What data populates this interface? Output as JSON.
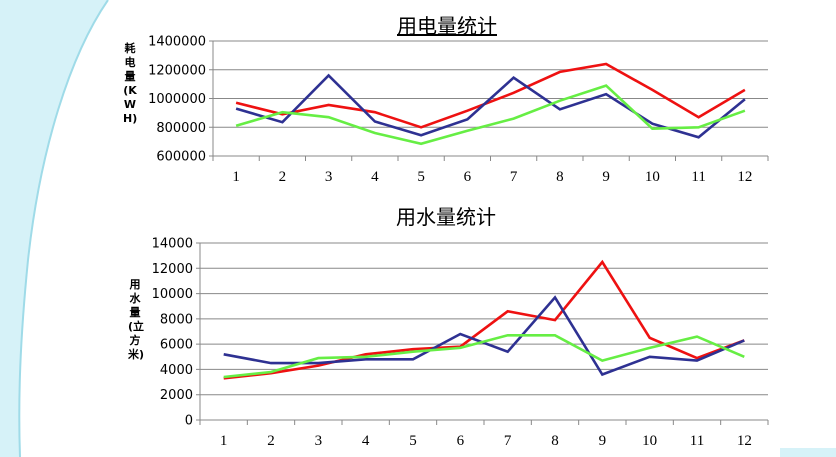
{
  "colors": {
    "series_red": "#ee1111",
    "series_blue": "#2e3192",
    "series_green": "#66ee44",
    "grid": "#888888",
    "background_accent": "#cdeff6"
  },
  "chart_data": [
    {
      "type": "line",
      "title": "用电量统计",
      "xlabel": "",
      "ylabel": "耗电量(KWH)",
      "categories": [
        "1",
        "2",
        "3",
        "4",
        "5",
        "6",
        "7",
        "8",
        "9",
        "10",
        "11",
        "12"
      ],
      "ylim": [
        600000,
        1400000
      ],
      "yticks": [
        600000,
        800000,
        1000000,
        1200000,
        1400000
      ],
      "ytick_labels": [
        "600000",
        "800000",
        "1000000",
        "1200000",
        "1400000"
      ],
      "grid": true,
      "series": [
        {
          "name": "red",
          "values": [
            970000,
            890000,
            955000,
            905000,
            800000,
            915000,
            1040000,
            1185000,
            1240000,
            1060000,
            870000,
            1060000
          ]
        },
        {
          "name": "blue",
          "values": [
            930000,
            835000,
            1160000,
            840000,
            745000,
            855000,
            1145000,
            925000,
            1030000,
            825000,
            730000,
            995000
          ]
        },
        {
          "name": "green",
          "values": [
            810000,
            905000,
            870000,
            760000,
            685000,
            775000,
            860000,
            985000,
            1090000,
            790000,
            800000,
            915000
          ]
        }
      ]
    },
    {
      "type": "line",
      "title": "用水量统计",
      "xlabel": "",
      "ylabel": "用水量(立方米)",
      "categories": [
        "1",
        "2",
        "3",
        "4",
        "5",
        "6",
        "7",
        "8",
        "9",
        "10",
        "11",
        "12"
      ],
      "ylim": [
        0,
        14000
      ],
      "yticks": [
        0,
        2000,
        4000,
        6000,
        8000,
        10000,
        12000,
        14000
      ],
      "ytick_labels": [
        "0",
        "2000",
        "4000",
        "6000",
        "8000",
        "10000",
        "12000",
        "14000"
      ],
      "grid": true,
      "series": [
        {
          "name": "red",
          "values": [
            3300,
            3700,
            4300,
            5200,
            5600,
            5800,
            8600,
            7900,
            12500,
            6500,
            4900,
            6300
          ]
        },
        {
          "name": "blue",
          "values": [
            5200,
            4500,
            4500,
            4800,
            4800,
            6800,
            5400,
            9700,
            3600,
            5000,
            4700,
            6300
          ]
        },
        {
          "name": "green",
          "values": [
            3400,
            3800,
            4900,
            5000,
            5400,
            5700,
            6700,
            6700,
            4700,
            5700,
            6600,
            5000
          ]
        }
      ]
    }
  ]
}
